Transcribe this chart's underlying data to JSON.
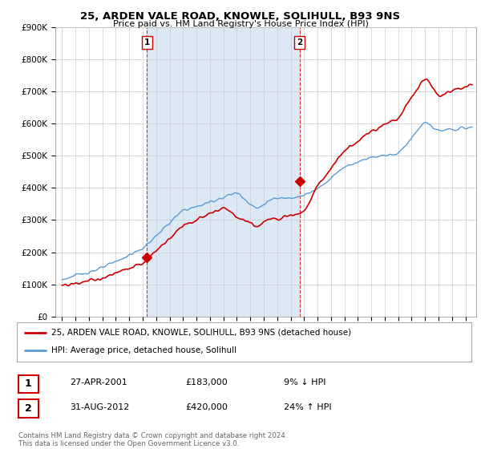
{
  "title": "25, ARDEN VALE ROAD, KNOWLE, SOLIHULL, B93 9NS",
  "subtitle": "Price paid vs. HM Land Registry's House Price Index (HPI)",
  "ylim": [
    0,
    900000
  ],
  "yticks": [
    0,
    100000,
    200000,
    300000,
    400000,
    500000,
    600000,
    700000,
    800000,
    900000
  ],
  "ytick_labels": [
    "£0",
    "£100K",
    "£200K",
    "£300K",
    "£400K",
    "£500K",
    "£600K",
    "£700K",
    "£800K",
    "£900K"
  ],
  "sale1": {
    "date_num": 2001.32,
    "price": 183000,
    "label": "1"
  },
  "sale2": {
    "date_num": 2012.66,
    "price": 420000,
    "label": "2"
  },
  "hpi_color": "#5b9bd5",
  "hpi_fill_color": "#dce9f5",
  "price_color": "#cc0000",
  "vline_color": "#cc0000",
  "grid_color": "#cccccc",
  "background_color": "#ffffff",
  "legend_entry1": "25, ARDEN VALE ROAD, KNOWLE, SOLIHULL, B93 9NS (detached house)",
  "legend_entry2": "HPI: Average price, detached house, Solihull",
  "table_row1": [
    "1",
    "27-APR-2001",
    "£183,000",
    "9% ↓ HPI"
  ],
  "table_row2": [
    "2",
    "31-AUG-2012",
    "£420,000",
    "24% ↑ HPI"
  ],
  "footnote": "Contains HM Land Registry data © Crown copyright and database right 2024.\nThis data is licensed under the Open Government Licence v3.0.",
  "xlim_start": 1994.5,
  "xlim_end": 2025.8
}
